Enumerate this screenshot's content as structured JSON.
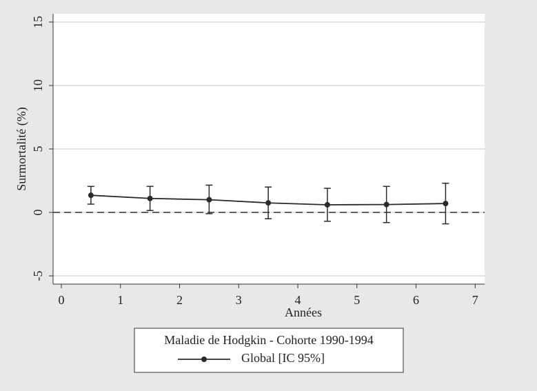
{
  "chart_data": {
    "type": "line",
    "xlabel": "Années",
    "ylabel": "Surmortalité (%)",
    "x": [
      0.5,
      1.5,
      2.5,
      3.5,
      4.5,
      5.5,
      6.5
    ],
    "series": [
      {
        "name": "Global [IC 95%]",
        "color": "#2a2a2a",
        "values": [
          1.35,
          1.1,
          1.0,
          0.75,
          0.6,
          0.62,
          0.7
        ],
        "lower": [
          0.65,
          0.15,
          -0.1,
          -0.5,
          -0.7,
          -0.8,
          -0.9
        ],
        "upper": [
          2.05,
          2.05,
          2.15,
          2.0,
          1.9,
          2.05,
          2.3
        ]
      }
    ],
    "xlim": [
      -0.14,
      7.16
    ],
    "xticks": [
      0,
      1,
      2,
      3,
      4,
      5,
      6,
      7
    ],
    "ylim": [
      -5.65,
      15.65
    ],
    "yticks": [
      -5,
      0,
      5,
      10,
      15
    ],
    "grid": true,
    "refline": 0,
    "legend_title": "Maladie de Hodgkin - Cohorte 1990-1994",
    "legend_position": "bottom"
  }
}
